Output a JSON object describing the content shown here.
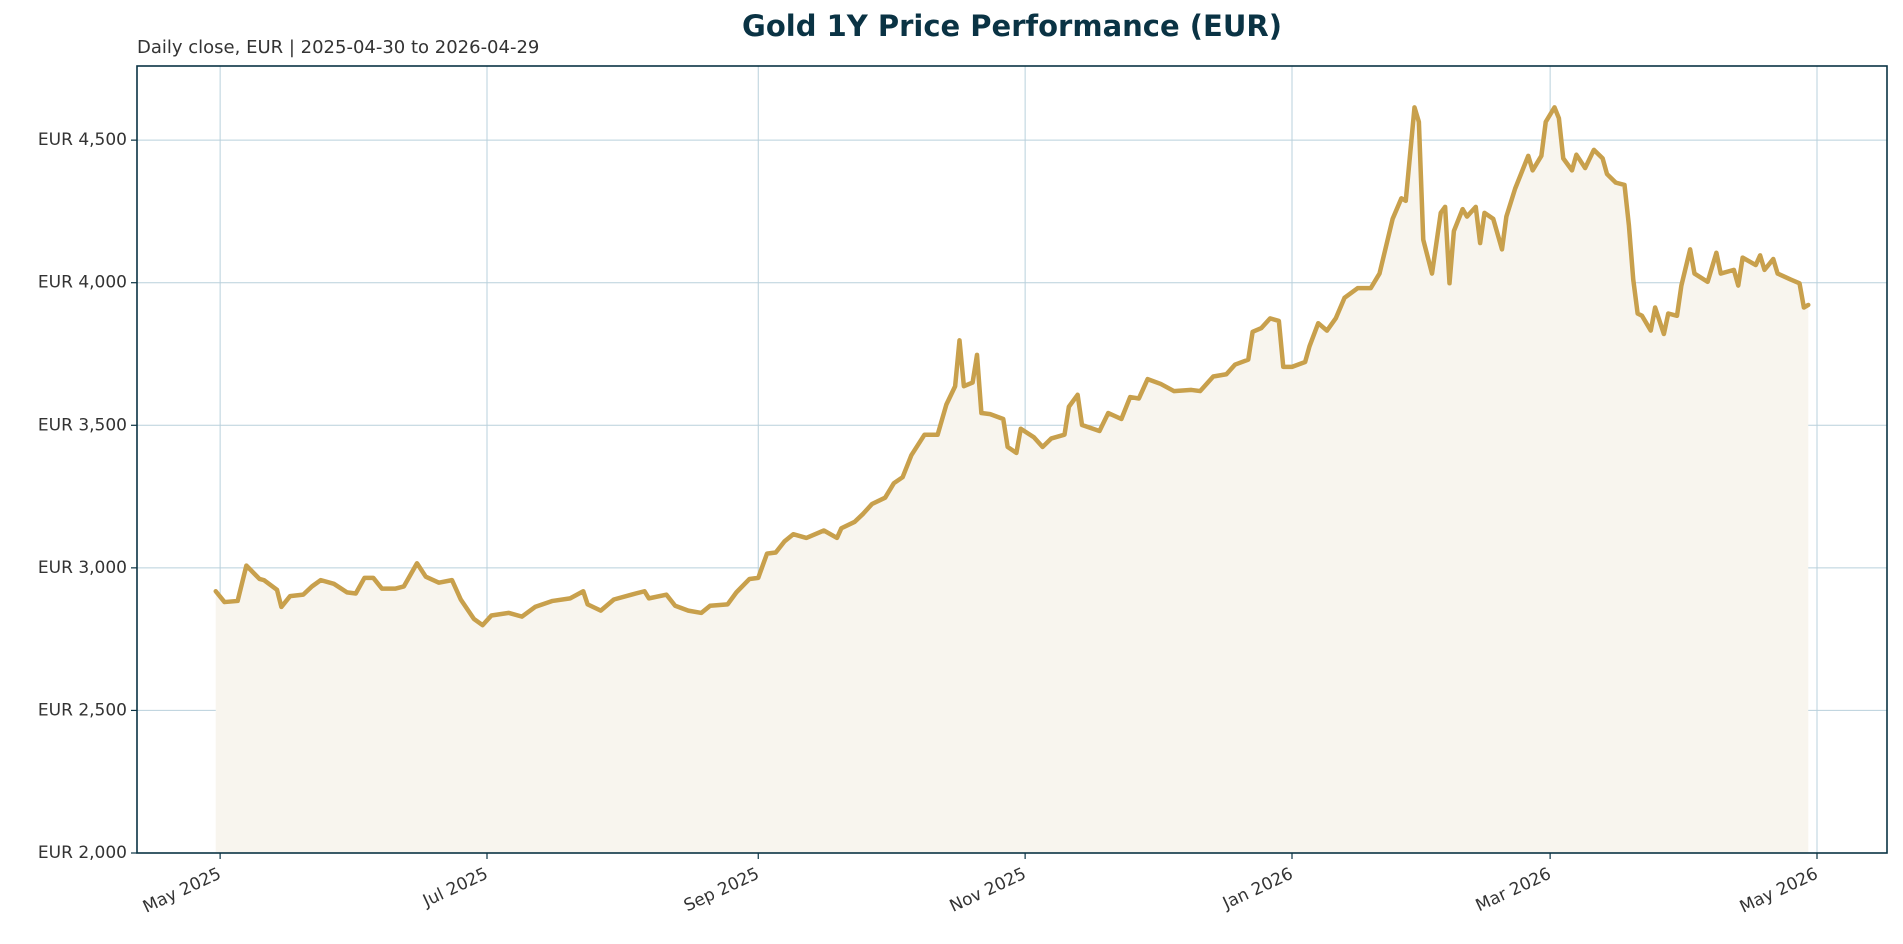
{
  "chart_data": {
    "type": "line",
    "title": "Gold 1Y Price Performance (EUR)",
    "subtitle": "Daily close, EUR | 2025-04-30 to 2026-04-29",
    "color": "#c8a04c",
    "fill_color": "#f8f5ee",
    "grid": true,
    "xlim": [
      "2025-04-12",
      "2026-05-17"
    ],
    "ylim": [
      2000,
      4760
    ],
    "xticks": [
      {
        "value": "2025-05-01",
        "label": "May 2025"
      },
      {
        "value": "2025-07-01",
        "label": "Jul 2025"
      },
      {
        "value": "2025-09-01",
        "label": "Sep 2025"
      },
      {
        "value": "2025-11-01",
        "label": "Nov 2025"
      },
      {
        "value": "2026-01-01",
        "label": "Jan 2026"
      },
      {
        "value": "2026-03-01",
        "label": "Mar 2026"
      },
      {
        "value": "2026-05-01",
        "label": "May 2026"
      }
    ],
    "yticks": [
      {
        "value": 2000,
        "label": "EUR 2,000"
      },
      {
        "value": 2500,
        "label": "EUR 2,500"
      },
      {
        "value": 3000,
        "label": "EUR 3,000"
      },
      {
        "value": 3500,
        "label": "EUR 3,500"
      },
      {
        "value": 4000,
        "label": "EUR 4,000"
      },
      {
        "value": 4500,
        "label": "EUR 4,500"
      }
    ],
    "x": [
      "2025-04-30",
      "2025-05-02",
      "2025-05-05",
      "2025-05-07",
      "2025-05-10",
      "2025-05-11",
      "2025-05-14",
      "2025-05-15",
      "2025-05-17",
      "2025-05-20",
      "2025-05-22",
      "2025-05-24",
      "2025-05-27",
      "2025-05-30",
      "2025-06-01",
      "2025-06-03",
      "2025-06-05",
      "2025-06-07",
      "2025-06-10",
      "2025-06-12",
      "2025-06-15",
      "2025-06-17",
      "2025-06-20",
      "2025-06-23",
      "2025-06-25",
      "2025-06-28",
      "2025-06-30",
      "2025-07-02",
      "2025-07-06",
      "2025-07-09",
      "2025-07-12",
      "2025-07-16",
      "2025-07-20",
      "2025-07-23",
      "2025-07-24",
      "2025-07-27",
      "2025-07-30",
      "2025-08-03",
      "2025-08-06",
      "2025-08-07",
      "2025-08-11",
      "2025-08-13",
      "2025-08-16",
      "2025-08-19",
      "2025-08-21",
      "2025-08-25",
      "2025-08-27",
      "2025-08-30",
      "2025-09-01",
      "2025-09-03",
      "2025-09-05",
      "2025-09-07",
      "2025-09-09",
      "2025-09-12",
      "2025-09-16",
      "2025-09-19",
      "2025-09-20",
      "2025-09-23",
      "2025-09-25",
      "2025-09-27",
      "2025-09-30",
      "2025-10-02",
      "2025-10-04",
      "2025-10-06",
      "2025-10-09",
      "2025-10-12",
      "2025-10-14",
      "2025-10-16",
      "2025-10-17",
      "2025-10-18",
      "2025-10-20",
      "2025-10-21",
      "2025-10-22",
      "2025-10-24",
      "2025-10-27",
      "2025-10-28",
      "2025-10-30",
      "2025-10-31",
      "2025-11-03",
      "2025-11-05",
      "2025-11-07",
      "2025-11-10",
      "2025-11-11",
      "2025-11-13",
      "2025-11-14",
      "2025-11-18",
      "2025-11-20",
      "2025-11-23",
      "2025-11-25",
      "2025-11-27",
      "2025-11-29",
      "2025-12-02",
      "2025-12-05",
      "2025-12-09",
      "2025-12-11",
      "2025-12-14",
      "2025-12-17",
      "2025-12-19",
      "2025-12-22",
      "2025-12-23",
      "2025-12-25",
      "2025-12-27",
      "2025-12-29",
      "2025-12-30",
      "2026-01-01",
      "2026-01-04",
      "2026-01-05",
      "2026-01-07",
      "2026-01-09",
      "2026-01-11",
      "2026-01-13",
      "2026-01-16",
      "2026-01-19",
      "2026-01-21",
      "2026-01-22",
      "2026-01-24",
      "2026-01-26",
      "2026-01-27",
      "2026-01-29",
      "2026-01-30",
      "2026-01-31",
      "2026-02-02",
      "2026-02-04",
      "2026-02-05",
      "2026-02-06",
      "2026-02-07",
      "2026-02-09",
      "2026-02-10",
      "2026-02-12",
      "2026-02-13",
      "2026-02-14",
      "2026-02-16",
      "2026-02-18",
      "2026-02-19",
      "2026-02-21",
      "2026-02-24",
      "2026-02-25",
      "2026-02-27",
      "2026-02-28",
      "2026-03-02",
      "2026-03-03",
      "2026-03-04",
      "2026-03-06",
      "2026-03-07",
      "2026-03-09",
      "2026-03-11",
      "2026-03-13",
      "2026-03-14",
      "2026-03-16",
      "2026-03-18",
      "2026-03-19",
      "2026-03-20",
      "2026-03-21",
      "2026-03-22",
      "2026-03-24",
      "2026-03-25",
      "2026-03-27",
      "2026-03-28",
      "2026-03-30",
      "2026-03-31",
      "2026-04-02",
      "2026-04-03",
      "2026-04-06",
      "2026-04-08",
      "2026-04-09",
      "2026-04-12",
      "2026-04-13",
      "2026-04-14",
      "2026-04-17",
      "2026-04-18",
      "2026-04-19",
      "2026-04-21",
      "2026-04-22",
      "2026-04-25",
      "2026-04-27",
      "2026-04-28",
      "2026-04-29"
    ],
    "values": [
      2918,
      2880,
      2884,
      3008,
      2961,
      2957,
      2923,
      2863,
      2901,
      2906,
      2935,
      2957,
      2944,
      2914,
      2910,
      2965,
      2965,
      2927,
      2927,
      2935,
      3016,
      2969,
      2948,
      2957,
      2889,
      2821,
      2799,
      2833,
      2842,
      2829,
      2863,
      2884,
      2893,
      2918,
      2872,
      2850,
      2889,
      2906,
      2918,
      2893,
      2906,
      2867,
      2850,
      2842,
      2867,
      2872,
      2914,
      2961,
      2965,
      3050,
      3054,
      3093,
      3118,
      3105,
      3131,
      3105,
      3139,
      3161,
      3190,
      3224,
      3246,
      3297,
      3318,
      3395,
      3467,
      3467,
      3573,
      3637,
      3798,
      3637,
      3650,
      3747,
      3543,
      3539,
      3522,
      3424,
      3403,
      3488,
      3458,
      3424,
      3454,
      3467,
      3565,
      3607,
      3501,
      3480,
      3543,
      3522,
      3599,
      3594,
      3662,
      3645,
      3620,
      3624,
      3620,
      3671,
      3679,
      3713,
      3730,
      3828,
      3841,
      3875,
      3866,
      3705,
      3705,
      3722,
      3777,
      3858,
      3832,
      3875,
      3947,
      3981,
      3981,
      4032,
      4096,
      4224,
      4296,
      4287,
      4615,
      4564,
      4151,
      4032,
      4245,
      4266,
      3998,
      4181,
      4258,
      4232,
      4266,
      4139,
      4245,
      4224,
      4117,
      4232,
      4330,
      4445,
      4394,
      4445,
      4564,
      4615,
      4577,
      4436,
      4394,
      4449,
      4402,
      4466,
      4436,
      4381,
      4351,
      4343,
      4202,
      4011,
      3892,
      3884,
      3832,
      3913,
      3820,
      3892,
      3884,
      3990,
      4117,
      4032,
      4003,
      4105,
      4032,
      4045,
      3990,
      4088,
      4062,
      4096,
      4045,
      4083,
      4032,
      4011,
      3998,
      3913,
      3922
    ]
  }
}
